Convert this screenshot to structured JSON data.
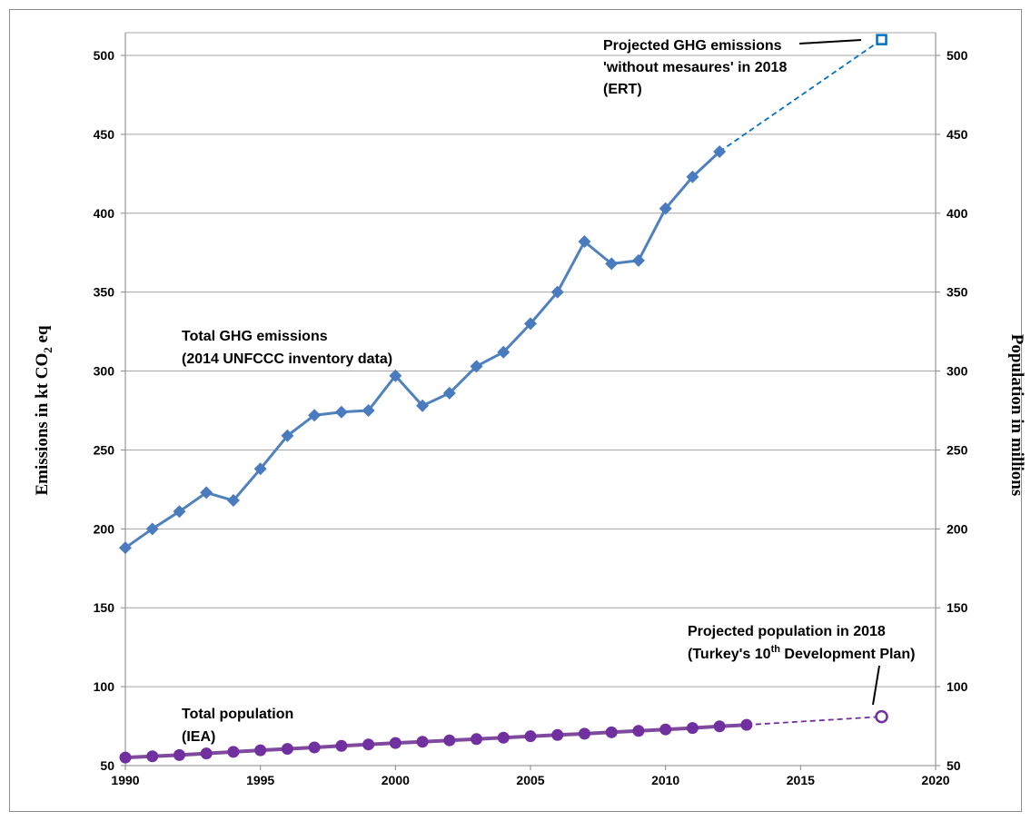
{
  "chart_data": {
    "type": "line",
    "xlim": [
      1990,
      2020
    ],
    "ylim_left": [
      50,
      500
    ],
    "ylim_right": [
      50,
      500
    ],
    "grid": "horizontal",
    "x_ticks": [
      "1990",
      "1995",
      "2000",
      "2005",
      "2010",
      "2015",
      "2020"
    ],
    "y_ticks": [
      "50",
      "100",
      "150",
      "200",
      "250",
      "300",
      "350",
      "400",
      "450",
      "500"
    ],
    "ylabel_left": {
      "pre": "Emissions in kt CO",
      "sub": "2",
      "post": " eq"
    },
    "ylabel_right": "Population in millions",
    "colors": {
      "emissions": "#4f81bd",
      "emissions_marker": "#4a7bbf",
      "projection_emissions": "#0070c0",
      "population": "#7f4a9e",
      "population_marker": "#7030a0"
    },
    "series": [
      {
        "key": "emissions",
        "x": [
          1990,
          1991,
          1992,
          1993,
          1994,
          1995,
          1996,
          1997,
          1998,
          1999,
          2000,
          2001,
          2002,
          2003,
          2004,
          2005,
          2006,
          2007,
          2008,
          2009,
          2010,
          2011,
          2012
        ],
        "values": [
          188,
          200,
          211,
          223,
          218,
          238,
          259,
          272,
          274,
          275,
          297,
          278,
          286,
          303,
          312,
          330,
          350,
          382,
          368,
          370,
          403,
          423,
          439
        ]
      },
      {
        "key": "population",
        "x": [
          1990,
          1991,
          1992,
          1993,
          1994,
          1995,
          1996,
          1997,
          1998,
          1999,
          2000,
          2001,
          2002,
          2003,
          2004,
          2005,
          2006,
          2007,
          2008,
          2009,
          2010,
          2011,
          2012,
          2013
        ],
        "values": [
          55.1,
          55.9,
          56.7,
          57.7,
          58.7,
          59.7,
          60.6,
          61.5,
          62.5,
          63.4,
          64.3,
          65.1,
          66.0,
          66.8,
          67.7,
          68.6,
          69.4,
          70.2,
          71.1,
          72.0,
          72.9,
          73.8,
          74.9,
          75.8
        ]
      }
    ],
    "projections": [
      {
        "key": "emissions",
        "from": [
          2012,
          439
        ],
        "to": [
          2018,
          510
        ]
      },
      {
        "key": "population",
        "from": [
          2013,
          75.8
        ],
        "to": [
          2018,
          81
        ]
      }
    ],
    "annotations": {
      "emissions_label": [
        "Total GHG emissions",
        "(2014 UNFCCC inventory data)"
      ],
      "population_label": [
        "Total population",
        "(IEA)"
      ],
      "proj_emissions_label": [
        "Projected  GHG emissions",
        "'without mesaures' in 2018",
        "(ERT)"
      ],
      "proj_population_label": {
        "line1": "Projected population in 2018",
        "line2_pre": "(Turkey's 10",
        "line2_sup": "th",
        "line2_post": " Development Plan)"
      }
    }
  }
}
